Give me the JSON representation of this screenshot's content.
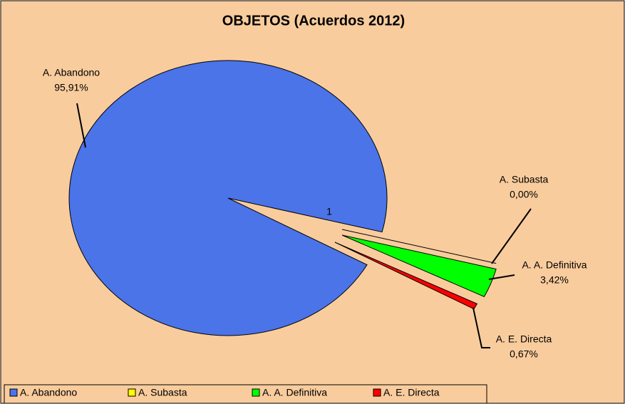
{
  "chart_data": {
    "type": "pie",
    "title": "OBJETOS (Acuerdos 2012)",
    "categories": [
      "A. Abandono",
      "A. Subasta",
      "A. A. Definitiva",
      "A. E. Directa"
    ],
    "values": [
      95.91,
      0.0,
      3.42,
      0.67
    ],
    "value_labels": [
      "95,91%",
      "0,00%",
      "3,42%",
      "0,67%"
    ],
    "colors": [
      "#4a74e8",
      "#ffff00",
      "#00ff00",
      "#ff0000"
    ],
    "annotation": "1",
    "legend": "bottom"
  }
}
